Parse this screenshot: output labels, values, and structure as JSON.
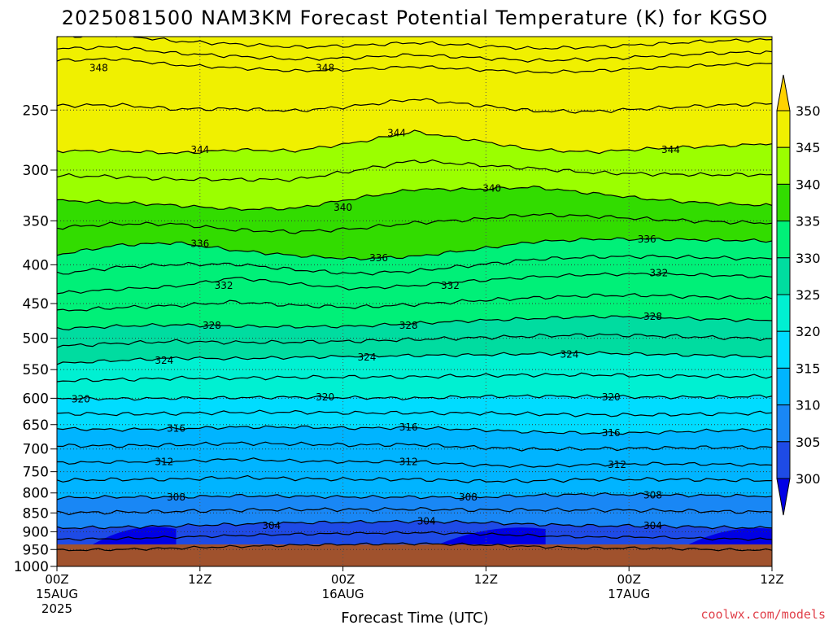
{
  "chart_data": {
    "type": "heatmap",
    "title": "2025081500 NAM3KM Forecast Potential Temperature (K) for KGSO",
    "xlabel": "Forecast Time (UTC)",
    "ylabel": "",
    "x_ticks": [
      {
        "hour": 0,
        "line1": "00Z",
        "line2": "15AUG",
        "line3": "2025"
      },
      {
        "hour": 12,
        "line1": "12Z",
        "line2": "",
        "line3": ""
      },
      {
        "hour": 24,
        "line1": "00Z",
        "line2": "16AUG",
        "line3": ""
      },
      {
        "hour": 36,
        "line1": "12Z",
        "line2": "",
        "line3": ""
      },
      {
        "hour": 48,
        "line1": "00Z",
        "line2": "17AUG",
        "line3": ""
      },
      {
        "hour": 60,
        "line1": "12Z",
        "line2": "",
        "line3": ""
      }
    ],
    "xlim": [
      0,
      60
    ],
    "y_axis_units": "hPa",
    "y_ticks": [
      "250",
      "300",
      "350",
      "400",
      "450",
      "500",
      "550",
      "600",
      "650",
      "700",
      "750",
      "800",
      "850",
      "900",
      "950",
      "1000"
    ],
    "ylim": [
      1000,
      200
    ],
    "y_scale": "log-pressure",
    "grid": true,
    "colorbar": {
      "levels": [
        "300",
        "305",
        "310",
        "315",
        "320",
        "325",
        "330",
        "335",
        "340",
        "345",
        "350"
      ],
      "colors": [
        "#0000e6",
        "#1e4be6",
        "#1987f5",
        "#00b4ff",
        "#00dcff",
        "#00f0d2",
        "#00dca0",
        "#00f078",
        "#32dc00",
        "#9bff00",
        "#f0f000",
        "#ffd200"
      ],
      "placement": "right"
    },
    "contour_labels": [
      {
        "text": "348",
        "hour": 3.5,
        "p": 220
      },
      {
        "text": "348",
        "hour": 22.5,
        "p": 220
      },
      {
        "text": "344",
        "hour": 28.5,
        "p": 268
      },
      {
        "text": "344",
        "hour": 12.0,
        "p": 282
      },
      {
        "text": "344",
        "hour": 51.5,
        "p": 282
      },
      {
        "text": "340",
        "hour": 36.5,
        "p": 317
      },
      {
        "text": "340",
        "hour": 24.0,
        "p": 336
      },
      {
        "text": "336",
        "hour": 12.0,
        "p": 375
      },
      {
        "text": "336",
        "hour": 27.0,
        "p": 392
      },
      {
        "text": "336",
        "hour": 49.5,
        "p": 370
      },
      {
        "text": "332",
        "hour": 14.0,
        "p": 426
      },
      {
        "text": "332",
        "hour": 33.0,
        "p": 426
      },
      {
        "text": "332",
        "hour": 50.5,
        "p": 410
      },
      {
        "text": "328",
        "hour": 13.0,
        "p": 481
      },
      {
        "text": "328",
        "hour": 29.5,
        "p": 481
      },
      {
        "text": "328",
        "hour": 50.0,
        "p": 468
      },
      {
        "text": "324",
        "hour": 9.0,
        "p": 535
      },
      {
        "text": "324",
        "hour": 26.0,
        "p": 530
      },
      {
        "text": "324",
        "hour": 43.0,
        "p": 525
      },
      {
        "text": "320",
        "hour": 2.0,
        "p": 602
      },
      {
        "text": "320",
        "hour": 22.5,
        "p": 598
      },
      {
        "text": "320",
        "hour": 46.5,
        "p": 598
      },
      {
        "text": "316",
        "hour": 10.0,
        "p": 658
      },
      {
        "text": "316",
        "hour": 29.5,
        "p": 655
      },
      {
        "text": "316",
        "hour": 46.5,
        "p": 667
      },
      {
        "text": "312",
        "hour": 9.0,
        "p": 728
      },
      {
        "text": "312",
        "hour": 29.5,
        "p": 728
      },
      {
        "text": "312",
        "hour": 47.0,
        "p": 734
      },
      {
        "text": "308",
        "hour": 10.0,
        "p": 810
      },
      {
        "text": "308",
        "hour": 34.5,
        "p": 810
      },
      {
        "text": "308",
        "hour": 50.0,
        "p": 805
      },
      {
        "text": "304",
        "hour": 18.0,
        "p": 884
      },
      {
        "text": "304",
        "hour": 31.0,
        "p": 872
      },
      {
        "text": "304",
        "hour": 50.0,
        "p": 884
      }
    ],
    "series": [
      {
        "level": 348,
        "values": [
          215,
          214,
          218,
          220,
          222,
          221,
          219,
          221,
          223,
          222,
          220,
          218,
          217
        ]
      },
      {
        "level": 344,
        "values": [
          283,
          283,
          285,
          282,
          283,
          276,
          267,
          274,
          282,
          284,
          281,
          279,
          277
        ]
      },
      {
        "level": 340,
        "values": [
          329,
          331,
          334,
          338,
          337,
          327,
          318,
          318,
          316,
          322,
          328,
          332,
          334
        ]
      },
      {
        "level": 336,
        "values": [
          388,
          377,
          374,
          383,
          389,
          393,
          390,
          382,
          373,
          370,
          370,
          371,
          372
        ]
      },
      {
        "level": 332,
        "values": [
          436,
          431,
          427,
          416,
          424,
          430,
          426,
          420,
          415,
          412,
          411,
          413,
          415
        ]
      },
      {
        "level": 328,
        "values": [
          486,
          482,
          480,
          482,
          483,
          482,
          478,
          474,
          471,
          468,
          469,
          472,
          474
        ]
      },
      {
        "level": 324,
        "values": [
          540,
          535,
          531,
          532,
          530,
          528,
          527,
          526,
          524,
          523,
          525,
          527,
          529
        ]
      },
      {
        "level": 320,
        "values": [
          600,
          601,
          600,
          599,
          598,
          599,
          600,
          597,
          596,
          597,
          598,
          598,
          596
        ]
      },
      {
        "level": 316,
        "values": [
          658,
          660,
          658,
          655,
          655,
          657,
          656,
          660,
          665,
          667,
          666,
          662,
          660
        ]
      },
      {
        "level": 312,
        "values": [
          730,
          728,
          727,
          722,
          726,
          728,
          727,
          735,
          738,
          734,
          732,
          733,
          735
        ]
      },
      {
        "level": 308,
        "values": [
          812,
          810,
          810,
          807,
          808,
          810,
          810,
          811,
          806,
          803,
          805,
          806,
          808
        ]
      },
      {
        "level": 304,
        "values": [
          890,
          888,
          884,
          880,
          876,
          874,
          872,
          875,
          880,
          884,
          884,
          888,
          890
        ]
      }
    ],
    "hours": [
      0,
      5,
      10,
      15,
      20,
      25,
      30,
      35,
      40,
      45,
      50,
      55,
      60
    ]
  },
  "credit": "coolwx.com/models"
}
